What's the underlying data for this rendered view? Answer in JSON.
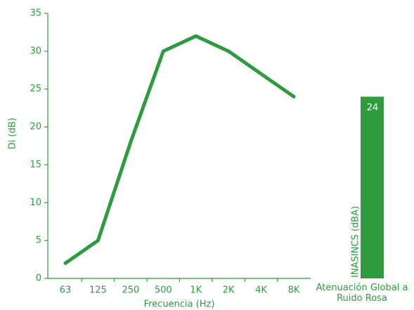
{
  "chart_data": [
    {
      "type": "line",
      "ylabel": "Di (dB)",
      "xlabel": "Frecuencia (Hz)",
      "categories": [
        "63",
        "125",
        "250",
        "500",
        "1K",
        "2K",
        "4K",
        "8K"
      ],
      "values": [
        2,
        5,
        18,
        30,
        32,
        30,
        27,
        24
      ],
      "color": "#2e9b3e",
      "ylim": [
        0,
        35
      ],
      "yticks": [
        0,
        5,
        10,
        15,
        20,
        25,
        30,
        35
      ]
    },
    {
      "type": "bar",
      "ylabel": "INASINCS (dBA)",
      "categories": [
        "Atenuación Global a Ruido Rosa"
      ],
      "values": [
        24
      ],
      "color": "#2e9b3e",
      "ylim": [
        0,
        35
      ]
    }
  ]
}
